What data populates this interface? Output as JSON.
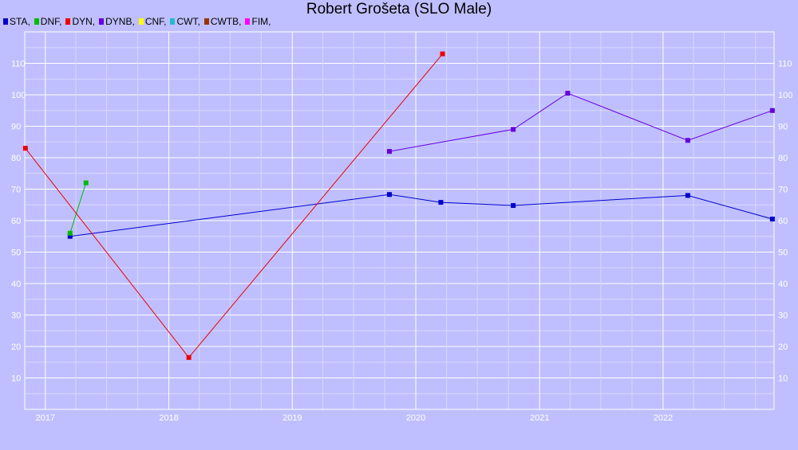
{
  "chart_data": {
    "type": "line",
    "title": "Robert Grošeta (SLO Male)",
    "xlabel": "",
    "ylabel": "",
    "xlim": [
      "2016-11-01",
      "2022-11-25"
    ],
    "ylim": [
      0,
      120
    ],
    "yticks": [
      10,
      20,
      30,
      40,
      50,
      60,
      70,
      80,
      90,
      100,
      110
    ],
    "xticks": [
      "2017",
      "2018",
      "2019",
      "2020",
      "2021",
      "2022"
    ],
    "grid": true,
    "legend_position": "top-left",
    "legend": [
      {
        "name": "STA",
        "label": "STA,",
        "color": "#0000cc"
      },
      {
        "name": "DNF",
        "label": "DNF,",
        "color": "#00bb00"
      },
      {
        "name": "DYN",
        "label": "DYN,",
        "color": "#ee0000"
      },
      {
        "name": "DYNB",
        "label": "DYNB,",
        "color": "#6600dd"
      },
      {
        "name": "CNF",
        "label": "CNF,",
        "color": "#ffff00"
      },
      {
        "name": "CWT",
        "label": "CWT,",
        "color": "#22bbcc"
      },
      {
        "name": "CWTB",
        "label": "CWTB,",
        "color": "#993300"
      },
      {
        "name": "FIM",
        "label": "FIM,",
        "color": "#ff00ff"
      }
    ],
    "series": [
      {
        "name": "STA",
        "color": "#0000cc",
        "points": [
          {
            "x": "2017-03-15",
            "y": 55
          },
          {
            "x": "2019-10-15",
            "y": 68.3
          },
          {
            "x": "2020-03-15",
            "y": 65.8
          },
          {
            "x": "2020-10-15",
            "y": 64.8
          },
          {
            "x": "2022-03-15",
            "y": 68
          },
          {
            "x": "2022-11-20",
            "y": 60.5
          }
        ]
      },
      {
        "name": "DNF",
        "color": "#00bb00",
        "points": [
          {
            "x": "2017-03-15",
            "y": 56
          },
          {
            "x": "2017-05-01",
            "y": 72
          }
        ]
      },
      {
        "name": "DYN",
        "color": "#ee0000",
        "points": [
          {
            "x": "2016-11-03",
            "y": 83
          },
          {
            "x": "2018-03-01",
            "y": 16.5
          },
          {
            "x": "2020-03-20",
            "y": 113
          }
        ]
      },
      {
        "name": "DYNB",
        "color": "#6600dd",
        "points": [
          {
            "x": "2019-10-15",
            "y": 82
          },
          {
            "x": "2020-10-15",
            "y": 89
          },
          {
            "x": "2021-03-25",
            "y": 100.5
          },
          {
            "x": "2022-03-15",
            "y": 85.5
          },
          {
            "x": "2022-11-20",
            "y": 95
          }
        ]
      }
    ]
  }
}
